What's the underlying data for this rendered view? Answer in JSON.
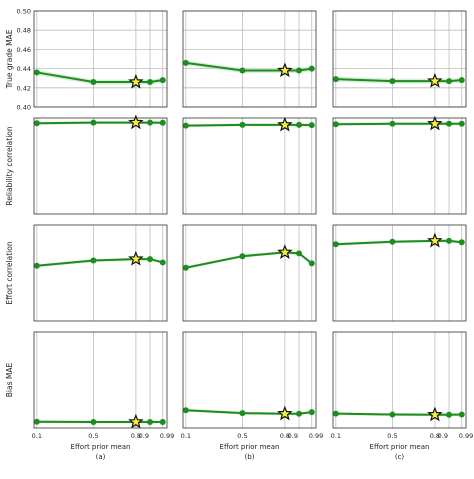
{
  "chart_data": {
    "type": "line",
    "x": [
      0.1,
      0.5,
      0.8,
      0.9,
      0.99
    ],
    "x_tick_labels": [
      "0.1",
      "0.5",
      "0.8",
      "0.9",
      "0.99"
    ],
    "xlabel": "Effort prior mean",
    "xlim": [
      0.08,
      1.02
    ],
    "highlight_x": 0.8,
    "colors": {
      "line": "#1e8c1e",
      "band": "#c8e8c8",
      "star": "#f2ee3a",
      "grid": "#bdbdbd"
    },
    "rows": [
      {
        "ylabel": "True grade MAE",
        "ylim": [
          0.4,
          0.5
        ],
        "yticks": [
          0.4,
          0.42,
          0.44,
          0.46,
          0.48,
          0.5
        ],
        "ytick_labels": [
          "0.40",
          "0.42",
          "0.44",
          "0.46",
          "0.48",
          "0.50"
        ],
        "series": [
          [
            0.436,
            0.426,
            0.426,
            0.426,
            0.428
          ],
          [
            0.446,
            0.438,
            0.438,
            0.438,
            0.44
          ],
          [
            0.429,
            0.427,
            0.427,
            0.427,
            0.428
          ]
        ]
      },
      {
        "ylabel": "Reliability correlation",
        "ylim": [
          0.0,
          1.0
        ],
        "yticks": [],
        "ytick_labels": [],
        "series": [
          [
            0.945,
            0.952,
            0.952,
            0.952,
            0.95
          ],
          [
            0.92,
            0.928,
            0.928,
            0.928,
            0.926
          ],
          [
            0.935,
            0.94,
            0.94,
            0.94,
            0.94
          ]
        ]
      },
      {
        "ylabel": "Effort correlation",
        "ylim": [
          0.0,
          1.0
        ],
        "yticks": [],
        "ytick_labels": [],
        "series": [
          [
            0.575,
            0.63,
            0.645,
            0.645,
            0.61
          ],
          [
            0.555,
            0.675,
            0.715,
            0.705,
            0.6
          ],
          [
            0.8,
            0.825,
            0.835,
            0.835,
            0.82
          ]
        ]
      },
      {
        "ylabel": "Bias MAE",
        "ylim": [
          0.0,
          1.0
        ],
        "yticks": [],
        "ytick_labels": [],
        "series": [
          [
            0.065,
            0.063,
            0.063,
            0.063,
            0.063
          ],
          [
            0.185,
            0.155,
            0.148,
            0.148,
            0.165
          ],
          [
            0.15,
            0.14,
            0.138,
            0.138,
            0.14
          ]
        ]
      }
    ],
    "columns": [
      "(a)",
      "(b)",
      "(c)"
    ],
    "grid": true
  }
}
